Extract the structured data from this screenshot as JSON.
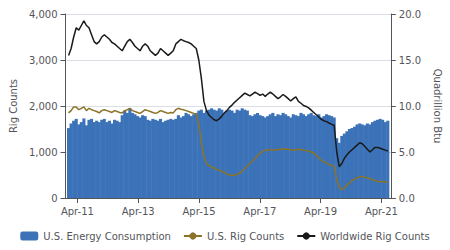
{
  "chart_data": {
    "type": "bar",
    "ylabel": "Rig Counts",
    "y2label": "Quadrillion Btu",
    "x": [
      2011,
      2011.084,
      2011.168,
      2011.252,
      2011.336,
      2011.42,
      2011.504,
      2011.588,
      2011.672,
      2011.756,
      2011.84,
      2011.924,
      2012.008,
      2012.092,
      2012.176,
      2012.26,
      2012.344,
      2012.428,
      2012.512,
      2012.596,
      2012.68,
      2012.764,
      2012.848,
      2012.932,
      2013.016,
      2013.1,
      2013.184,
      2013.268,
      2013.352,
      2013.436,
      2013.52,
      2013.604,
      2013.688,
      2013.772,
      2013.856,
      2013.94,
      2014.024,
      2014.108,
      2014.192,
      2014.276,
      2014.36,
      2014.444,
      2014.528,
      2014.612,
      2014.696,
      2014.78,
      2014.864,
      2014.948,
      2015.032,
      2015.116,
      2015.2,
      2015.284,
      2015.368,
      2015.452,
      2015.536,
      2015.62,
      2015.704,
      2015.788,
      2015.872,
      2015.956,
      2016.04,
      2016.124,
      2016.208,
      2016.292,
      2016.376,
      2016.46,
      2016.544,
      2016.628,
      2016.712,
      2016.796,
      2016.88,
      2016.964,
      2017.048,
      2017.132,
      2017.216,
      2017.3,
      2017.384,
      2017.468,
      2017.552,
      2017.636,
      2017.72,
      2017.804,
      2017.888,
      2017.972,
      2018.056,
      2018.14,
      2018.224,
      2018.308,
      2018.392,
      2018.476,
      2018.56,
      2018.644,
      2018.728,
      2018.812,
      2018.896,
      2018.98,
      2019.064,
      2019.148,
      2019.232,
      2019.316,
      2019.4,
      2019.484,
      2019.568,
      2019.652,
      2019.736,
      2019.82,
      2019.904,
      2019.988,
      2020.072,
      2020.156,
      2020.24,
      2020.324,
      2020.408,
      2020.492,
      2020.576,
      2020.66,
      2020.744,
      2020.828,
      2020.912,
      2020.996,
      2021.08,
      2021.164,
      2021.248,
      2021.332,
      2021.416,
      2021.5
    ],
    "xlim": [
      2010.9,
      2021.6
    ],
    "xticks": [
      {
        "value": 2011.29,
        "label": "Apr-11"
      },
      {
        "value": 2013.29,
        "label": "Apr-13"
      },
      {
        "value": 2015.29,
        "label": "Apr-15"
      },
      {
        "value": 2017.29,
        "label": "Apr-17"
      },
      {
        "value": 2019.29,
        "label": "Apr-19"
      },
      {
        "value": 2021.29,
        "label": "Apr-21"
      }
    ],
    "ylim": [
      0,
      4000
    ],
    "yticks": [
      0,
      {
        "value": 1000,
        "label": "1,000"
      },
      {
        "value": 2000,
        "label": "2,000"
      },
      {
        "value": 3000,
        "label": "3,000"
      },
      {
        "value": 4000,
        "label": "4,000"
      }
    ],
    "y2lim": [
      0,
      20.0
    ],
    "y2ticks": [
      {
        "value": 0.0,
        "label": "0.0"
      },
      {
        "value": 5.0,
        "label": "5.0"
      },
      {
        "value": 10.0,
        "label": "10.0"
      },
      {
        "value": 15.0,
        "label": "15.0"
      },
      {
        "value": 20.0,
        "label": "20.0"
      }
    ],
    "grid": true,
    "legend": "bottom",
    "series": [
      {
        "name": "U.S. Energy Consumption",
        "type": "bar",
        "color": "#3b72b8",
        "values": [
          1520,
          1620,
          1680,
          1720,
          1600,
          1650,
          1730,
          1580,
          1700,
          1720,
          1650,
          1680,
          1650,
          1700,
          1720,
          1650,
          1680,
          1620,
          1700,
          1680,
          1650,
          1800,
          1900,
          1850,
          1950,
          1850,
          1820,
          1780,
          1750,
          1800,
          1780,
          1700,
          1680,
          1720,
          1700,
          1680,
          1720,
          1650,
          1680,
          1700,
          1720,
          1700,
          1720,
          1800,
          1750,
          1780,
          1850,
          1820,
          1780,
          1820,
          1850,
          1900,
          1920,
          1850,
          1900,
          1920,
          1950,
          1920,
          1900,
          1950,
          1920,
          1850,
          1900,
          1920,
          1900,
          1850,
          1920,
          1900,
          1950,
          1920,
          1900,
          1800,
          1780,
          1820,
          1850,
          1800,
          1780,
          1750,
          1780,
          1820,
          1850,
          1780,
          1820,
          1800,
          1850,
          1820,
          1780,
          1750,
          1820,
          1800,
          1780,
          1850,
          1820,
          1780,
          1820,
          1850,
          1800,
          1780,
          1820,
          1750,
          1780,
          1820,
          1800,
          1780,
          1750,
          1300,
          1200,
          1350,
          1400,
          1450,
          1500,
          1520,
          1550,
          1600,
          1620,
          1600,
          1580,
          1620,
          1600,
          1650,
          1680,
          1700,
          1720,
          1700,
          1650,
          1680
        ]
      },
      {
        "name": "U.S. Rig Counts",
        "type": "line",
        "color": "#8B7328",
        "values": [
          1850,
          1900,
          1980,
          1980,
          1920,
          1950,
          1980,
          1900,
          1950,
          1920,
          1900,
          1880,
          1850,
          1900,
          1920,
          1900,
          1880,
          1860,
          1900,
          1880,
          1860,
          1850,
          1900,
          1920,
          1950,
          1900,
          1880,
          1860,
          1840,
          1880,
          1920,
          1900,
          1880,
          1860,
          1840,
          1860,
          1900,
          1880,
          1860,
          1840,
          1860,
          1850,
          1920,
          1950,
          1930,
          1920,
          1900,
          1880,
          1860,
          1840,
          1820,
          1600,
          1200,
          900,
          750,
          700,
          680,
          650,
          620,
          600,
          580,
          560,
          520,
          500,
          490,
          500,
          510,
          540,
          580,
          640,
          700,
          750,
          800,
          860,
          920,
          970,
          1010,
          1040,
          1050,
          1050,
          1040,
          1050,
          1050,
          1060,
          1070,
          1060,
          1060,
          1050,
          1040,
          1050,
          1060,
          1050,
          1040,
          1030,
          1020,
          1000,
          980,
          920,
          870,
          820,
          790,
          760,
          730,
          710,
          690,
          400,
          230,
          180,
          220,
          280,
          330,
          380,
          410,
          440,
          460,
          470,
          450,
          440,
          420,
          400,
          380,
          360,
          360,
          360,
          350,
          340
        ]
      },
      {
        "name": "Worldwide Rig Counts",
        "type": "line",
        "color": "#1a1a1a",
        "values": [
          3100,
          3250,
          3500,
          3700,
          3650,
          3750,
          3850,
          3750,
          3700,
          3550,
          3400,
          3350,
          3400,
          3500,
          3550,
          3500,
          3450,
          3380,
          3350,
          3300,
          3250,
          3200,
          3300,
          3400,
          3450,
          3380,
          3300,
          3250,
          3200,
          3300,
          3350,
          3300,
          3200,
          3150,
          3100,
          3150,
          3250,
          3200,
          3150,
          3100,
          3150,
          3200,
          3350,
          3400,
          3450,
          3420,
          3400,
          3380,
          3350,
          3300,
          3250,
          3000,
          2600,
          2100,
          1900,
          1800,
          1750,
          1700,
          1680,
          1720,
          1780,
          1850,
          1900,
          1970,
          2020,
          2080,
          2130,
          2180,
          2230,
          2280,
          2250,
          2220,
          2260,
          2300,
          2270,
          2230,
          2260,
          2210,
          2260,
          2300,
          2260,
          2210,
          2160,
          2200,
          2250,
          2210,
          2160,
          2110,
          2160,
          2200,
          2100,
          2060,
          2010,
          1990,
          1960,
          1910,
          1860,
          1810,
          1760,
          1710,
          1680,
          1660,
          1630,
          1600,
          1580,
          1000,
          680,
          750,
          860,
          940,
          1000,
          1050,
          1100,
          1150,
          1200,
          1180,
          1120,
          1060,
          1000,
          1050,
          1100,
          1100,
          1080,
          1060,
          1040,
          1020
        ]
      }
    ]
  }
}
